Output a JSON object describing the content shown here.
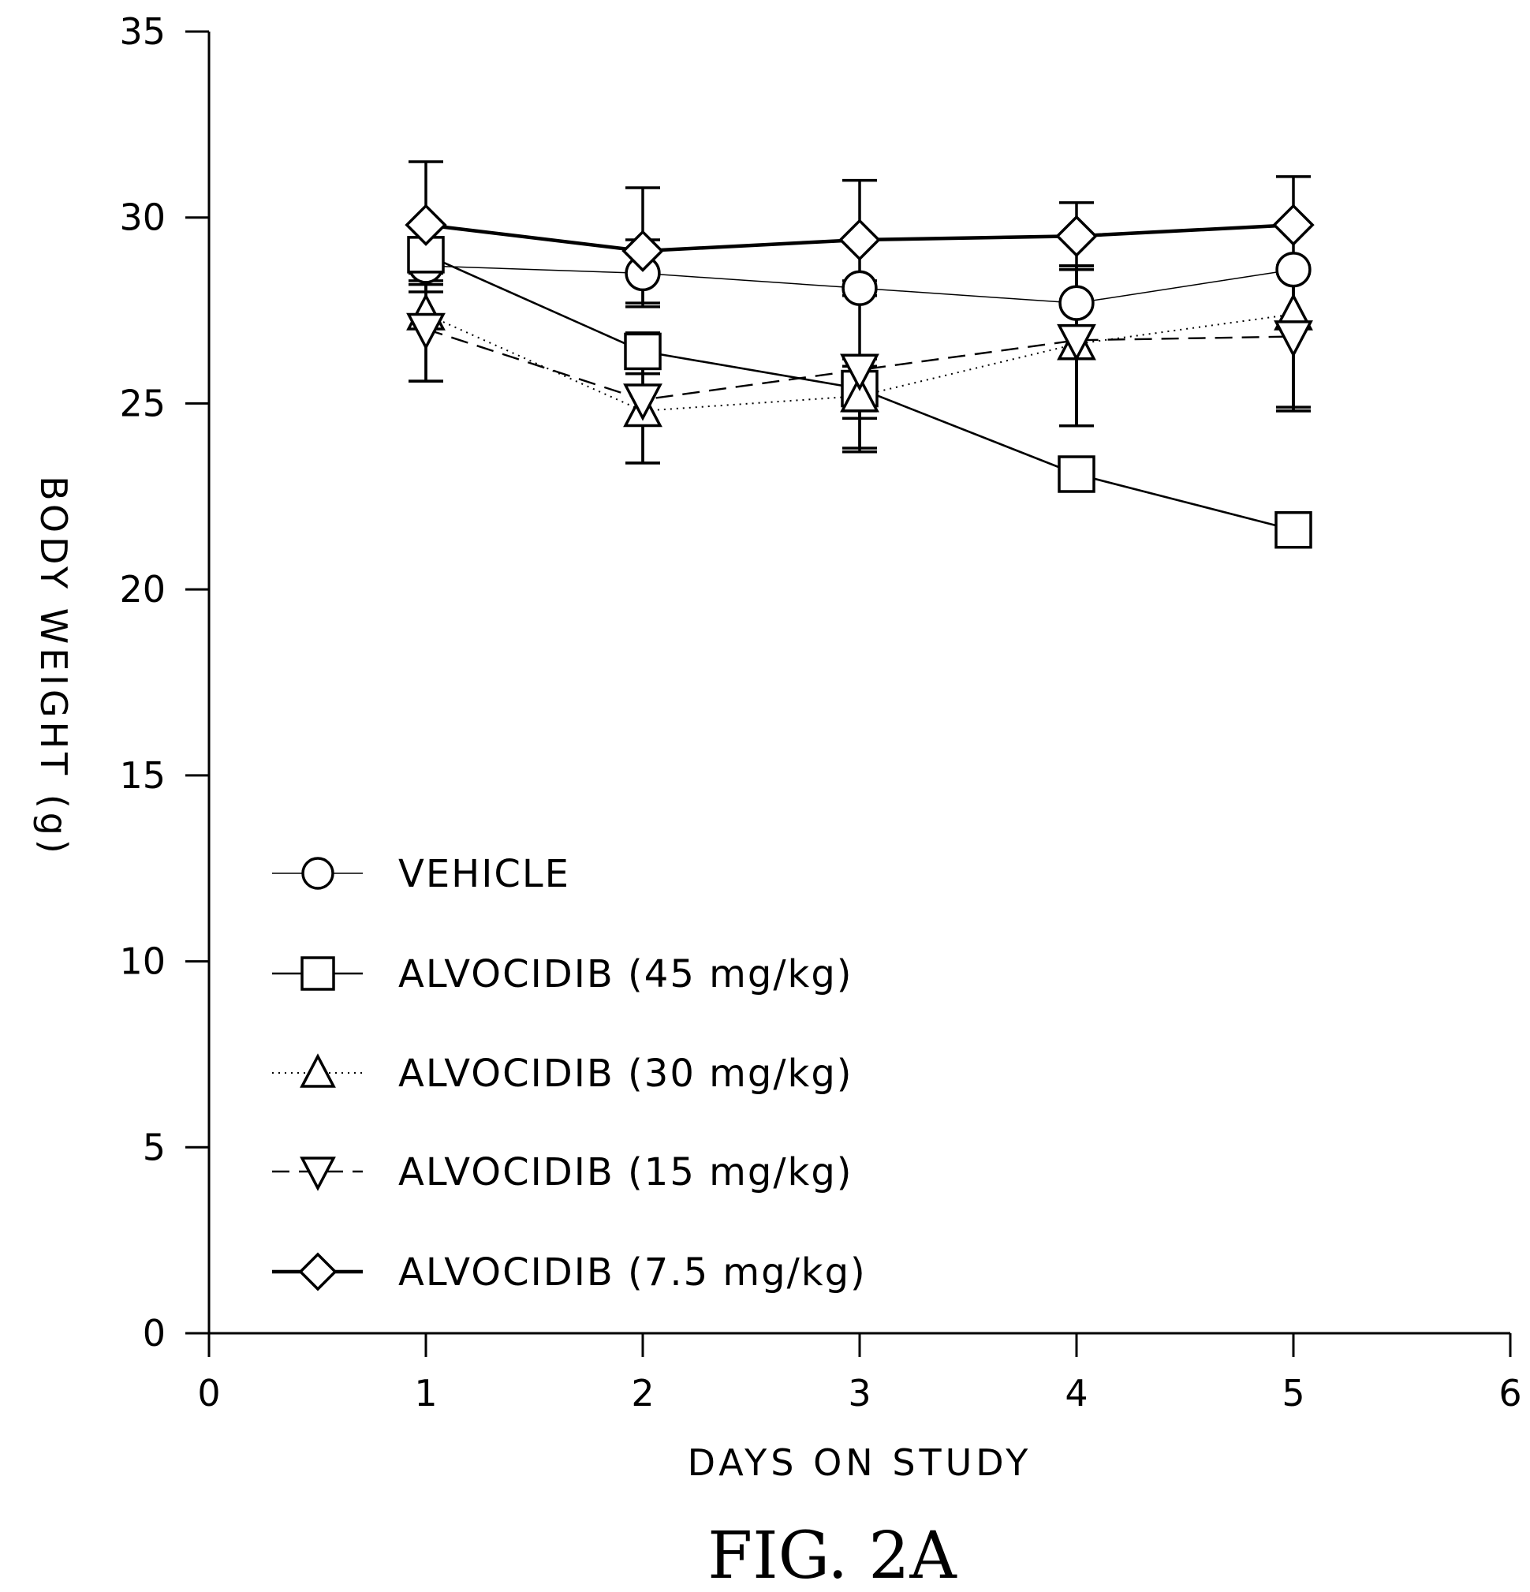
{
  "chart_data": {
    "type": "line",
    "title": "",
    "xlabel": "DAYS ON STUDY",
    "ylabel": "BODY WEIGHT (g)",
    "xlim": [
      0,
      6
    ],
    "ylim": [
      0,
      35
    ],
    "x_ticks": [
      0,
      1,
      2,
      3,
      4,
      5,
      6
    ],
    "y_ticks": [
      0,
      5,
      10,
      15,
      20,
      25,
      30,
      35
    ],
    "grid": false,
    "legend_position": "lower-left",
    "x": [
      1,
      2,
      3,
      4,
      5
    ],
    "series": [
      {
        "name": "VEHICLE",
        "marker": "circle",
        "line": "thin-solid",
        "values": [
          28.7,
          28.5,
          28.1,
          27.7,
          28.6
        ],
        "err_low": [
          28.0,
          27.6,
          24.8,
          24.4,
          24.9
        ],
        "err_high": [
          29.4,
          29.4,
          28.3,
          28.7,
          28.7
        ]
      },
      {
        "name": "ALVOCIDIB (45 mg/kg)",
        "marker": "square",
        "line": "solid",
        "values": [
          29.0,
          26.4,
          25.4,
          23.1,
          21.6
        ],
        "err_low": [
          28.2,
          25.8,
          24.6,
          null,
          null
        ],
        "err_high": [
          29.8,
          26.9,
          26.0,
          null,
          null
        ]
      },
      {
        "name": "ALVOCIDIB (30 mg/kg)",
        "marker": "triangle-up",
        "line": "dotted",
        "values": [
          27.4,
          24.8,
          25.2,
          26.6,
          27.4
        ],
        "err_low": [
          25.6,
          23.4,
          23.8,
          24.4,
          24.8
        ],
        "err_high": [
          28.5,
          26.4,
          26.2,
          28.7,
          28.6
        ]
      },
      {
        "name": "ALVOCIDIB (15 mg/kg)",
        "marker": "triangle-down",
        "line": "dashed",
        "values": [
          27.0,
          25.1,
          25.9,
          26.7,
          26.8
        ],
        "err_low": [
          25.6,
          23.4,
          23.7,
          24.4,
          24.8
        ],
        "err_high": [
          28.5,
          26.4,
          26.2,
          28.7,
          28.6
        ]
      },
      {
        "name": "ALVOCIDIB (7.5 mg/kg)",
        "marker": "diamond",
        "line": "thick-solid",
        "values": [
          29.8,
          29.1,
          29.4,
          29.5,
          29.8
        ],
        "err_low": [
          28.3,
          27.7,
          27.9,
          28.6,
          28.5
        ],
        "err_high": [
          31.5,
          30.8,
          31.0,
          30.4,
          31.1
        ]
      }
    ]
  },
  "caption": "FIG. 2A"
}
